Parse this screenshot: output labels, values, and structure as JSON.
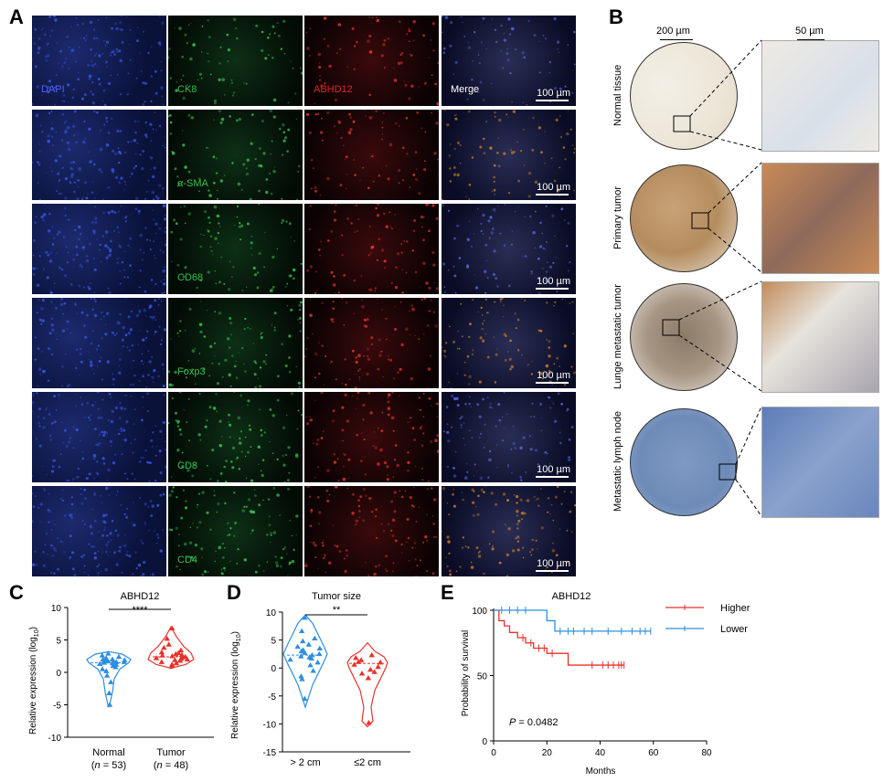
{
  "panels": {
    "a": "A",
    "b": "B",
    "c": "C",
    "d": "D",
    "e": "E"
  },
  "panelA": {
    "rows": [
      {
        "marker": "CK8",
        "first_label": "DAPI",
        "red_label": "ABHD12",
        "merge_label": "Merge"
      },
      {
        "marker": "α-SMA"
      },
      {
        "marker": "CD68"
      },
      {
        "marker": "Foxp3"
      },
      {
        "marker": "CD8"
      },
      {
        "marker": "CD4"
      }
    ],
    "scale": "100 µm"
  },
  "panelB": {
    "scale_left": "200 µm",
    "scale_right": "50 µm",
    "rows": [
      "Normal tissue",
      "Primary tumor",
      "Lunge metastatic tumor",
      "Metastatic lymph node"
    ]
  },
  "chart_data": [
    {
      "id": "C",
      "type": "violin",
      "title": "ABHD12",
      "ylabel": "Relative expression (log10)",
      "ylim": [
        -10,
        10
      ],
      "yticks": [
        -10,
        -5,
        0,
        5,
        10
      ],
      "categories": [
        "Normal",
        "Tumor"
      ],
      "n_labels": [
        "(n = 53)",
        "(n = 48)"
      ],
      "n_values": [
        53,
        48
      ],
      "significance": "****",
      "colors": [
        "#2e8fe0",
        "#e8322b"
      ]
    },
    {
      "id": "D",
      "type": "violin",
      "title": "Tumor size",
      "ylabel": "Relative expression (log10)",
      "ylim": [
        -15,
        10
      ],
      "yticks": [
        -15,
        -10,
        -5,
        0,
        5,
        10
      ],
      "categories": [
        "> 2 cm",
        "≤2 cm"
      ],
      "significance": "**",
      "colors": [
        "#2e8fe0",
        "#e8322b"
      ]
    },
    {
      "id": "E",
      "type": "line",
      "title": "ABHD12",
      "xlabel": "Months",
      "ylabel": "Probability of survival",
      "xlim": [
        0,
        80
      ],
      "ylim": [
        0,
        100
      ],
      "xticks": [
        0,
        20,
        40,
        60,
        80
      ],
      "yticks": [
        0,
        50,
        100
      ],
      "p_value": "P = 0.0482",
      "legend_position": "top-right",
      "series": [
        {
          "name": "Higher",
          "color": "#e8322b",
          "x": [
            0,
            2,
            4,
            6,
            9,
            12,
            15,
            20,
            28,
            49
          ],
          "y": [
            100,
            92,
            88,
            83,
            79,
            75,
            71,
            67,
            58,
            58
          ],
          "censor": [
            11,
            14,
            17,
            19,
            22,
            37,
            41,
            43,
            45,
            47,
            48,
            49
          ]
        },
        {
          "name": "Lower",
          "color": "#2e8fe0",
          "x": [
            0,
            20,
            23,
            59
          ],
          "y": [
            100,
            92,
            84,
            84
          ],
          "censor": [
            3,
            6,
            9,
            12,
            25,
            28,
            30,
            34,
            37,
            43,
            48,
            52,
            55,
            57,
            59
          ]
        }
      ]
    }
  ]
}
